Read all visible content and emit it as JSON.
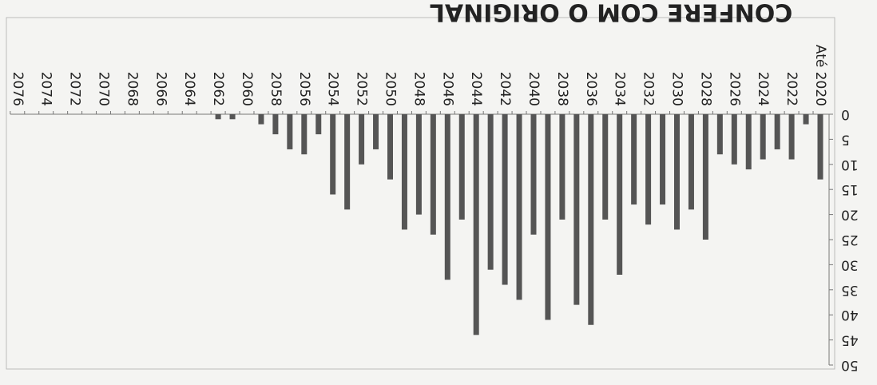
{
  "chart_data": {
    "type": "bar",
    "stamp": "CONFERE COM O ORIGINAL",
    "categories": [
      "Até 2020",
      null,
      "2022",
      null,
      "2024",
      null,
      "2026",
      null,
      "2028",
      null,
      "2030",
      null,
      "2032",
      null,
      "2034",
      null,
      "2036",
      null,
      "2038",
      null,
      "2040",
      null,
      "2042",
      null,
      "2044",
      null,
      "2046",
      null,
      "2048",
      null,
      "2050",
      null,
      "2052",
      null,
      "2054",
      null,
      "2056",
      null,
      "2058",
      null,
      "2060",
      null,
      "2062",
      null,
      "2064",
      null,
      "2066",
      null,
      "2068",
      null,
      "2070",
      null,
      "2072",
      null,
      "2074",
      null,
      "2076"
    ],
    "values": [
      13,
      2,
      9,
      7,
      9,
      11,
      10,
      8,
      25,
      19,
      23,
      18,
      22,
      18,
      32,
      21,
      42,
      38,
      21,
      41,
      24,
      37,
      34,
      31,
      44,
      21,
      33,
      24,
      20,
      23,
      13,
      7,
      10,
      19,
      16,
      4,
      8,
      7,
      4,
      2,
      0,
      1,
      1,
      0,
      0,
      0,
      0,
      0,
      0,
      0,
      0,
      0,
      0,
      0,
      0,
      0,
      0
    ],
    "color": "#555555",
    "ylim": [
      0,
      50
    ],
    "yticks": [
      0,
      5,
      10,
      15,
      20,
      25,
      30,
      35,
      40,
      45,
      50
    ]
  }
}
